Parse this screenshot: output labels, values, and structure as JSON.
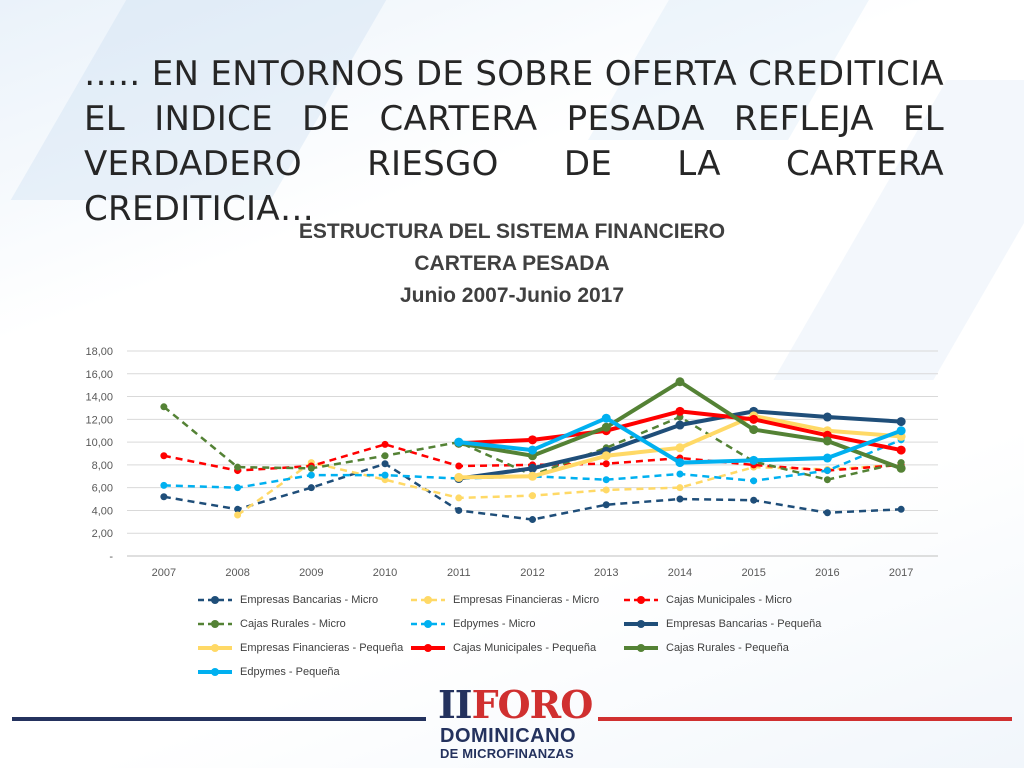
{
  "slide": {
    "title": "….. EN ENTORNOS DE SOBRE OFERTA CREDITICIA EL INDICE DE CARTERA PESADA REFLEJA EL VERDADERO RIESGO DE LA CARTERA CREDITICIA…"
  },
  "colors": {
    "bancarias": "#1f4e79",
    "financieras": "#ffd966",
    "municipales": "#ff0000",
    "rurales": "#548235",
    "edpymes": "#00b0f0",
    "footer_left": "#24325e",
    "footer_right": "#d03030"
  },
  "logo": {
    "roman": "II",
    "word": "FORO",
    "line1": "DOMINICANO",
    "line2": "DE MICROFINANZAS"
  },
  "chart_data": {
    "type": "line",
    "title": "ESTRUCTURA DEL SISTEMA FINANCIERO",
    "subtitle": "CARTERA PESADA",
    "subtitle2": "Junio 2007-Junio 2017",
    "xlabel": "",
    "ylabel": "",
    "x": [
      "2007",
      "2008",
      "2009",
      "2010",
      "2011",
      "2012",
      "2013",
      "2014",
      "2015",
      "2016",
      "2017"
    ],
    "ylim": [
      0,
      18
    ],
    "yticks": [
      "-",
      "2,00",
      "4,00",
      "6,00",
      "8,00",
      "10,00",
      "12,00",
      "14,00",
      "16,00",
      "18,00"
    ],
    "grid": true,
    "legend_position": "bottom",
    "series": [
      {
        "name": "Empresas Bancarias - Micro",
        "color": "#1f4e79",
        "dashed": true,
        "values": [
          5.2,
          4.1,
          6.0,
          8.1,
          4.0,
          3.2,
          4.5,
          5.0,
          4.9,
          3.8,
          4.1
        ]
      },
      {
        "name": "Empresas Financieras - Micro",
        "color": "#ffd966",
        "dashed": true,
        "values": [
          null,
          3.6,
          8.2,
          6.7,
          5.1,
          5.3,
          5.8,
          6.0,
          7.8,
          7.6,
          8.0
        ]
      },
      {
        "name": "Cajas Municipales - Micro",
        "color": "#ff0000",
        "dashed": true,
        "values": [
          8.8,
          7.5,
          7.9,
          9.8,
          7.9,
          8.0,
          8.1,
          8.6,
          8.0,
          7.5,
          8.0
        ]
      },
      {
        "name": "Cajas Rurales - Micro",
        "color": "#548235",
        "dashed": true,
        "values": [
          13.1,
          7.8,
          7.7,
          8.8,
          10.0,
          7.1,
          9.5,
          12.2,
          8.3,
          6.7,
          8.2
        ]
      },
      {
        "name": "Edpymes - Micro",
        "color": "#00b0f0",
        "dashed": true,
        "values": [
          6.2,
          6.0,
          7.1,
          7.1,
          6.8,
          7.0,
          6.7,
          7.2,
          6.6,
          7.5,
          10.2
        ]
      },
      {
        "name": "Empresas Bancarias - Pequeña",
        "color": "#1f4e79",
        "dashed": false,
        "values": [
          null,
          null,
          null,
          null,
          6.8,
          7.7,
          9.2,
          11.5,
          12.7,
          12.2,
          11.8
        ]
      },
      {
        "name": "Empresas Financieras - Pequeña",
        "color": "#ffd966",
        "dashed": false,
        "values": [
          null,
          null,
          null,
          null,
          6.9,
          7.0,
          8.8,
          9.5,
          12.3,
          11.0,
          10.5
        ]
      },
      {
        "name": "Cajas Municipales - Pequeña",
        "color": "#ff0000",
        "dashed": false,
        "values": [
          null,
          null,
          null,
          null,
          9.9,
          10.2,
          11.0,
          12.7,
          12.0,
          10.6,
          9.3
        ]
      },
      {
        "name": "Cajas Rurales - Pequeña",
        "color": "#548235",
        "dashed": false,
        "values": [
          null,
          null,
          null,
          null,
          9.9,
          8.8,
          11.3,
          15.3,
          11.1,
          10.1,
          7.7
        ]
      },
      {
        "name": "Edpymes - Pequeña",
        "color": "#00b0f0",
        "dashed": false,
        "values": [
          null,
          null,
          null,
          null,
          10.0,
          9.3,
          12.1,
          8.2,
          8.4,
          8.6,
          11.0
        ]
      }
    ]
  }
}
